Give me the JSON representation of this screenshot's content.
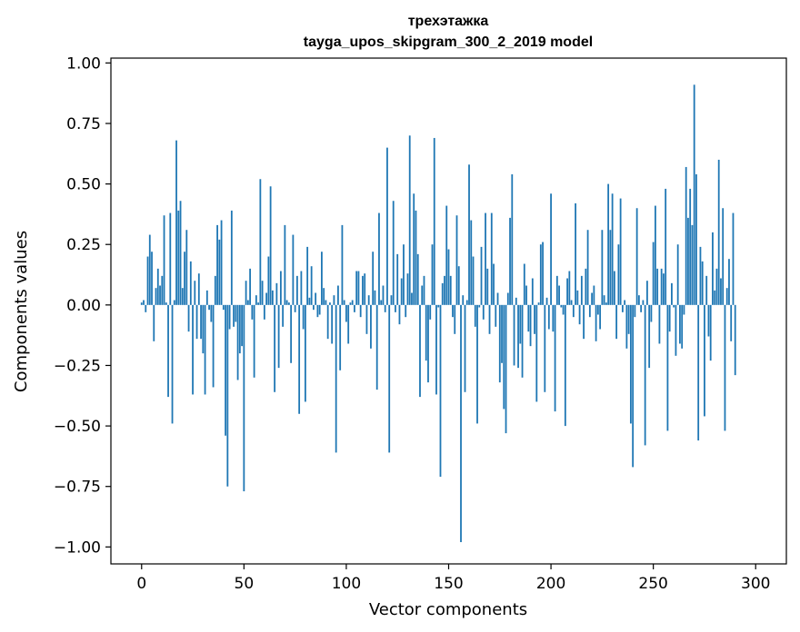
{
  "chart_data": {
    "type": "bar",
    "title": "трехэтажка",
    "subtitle": "tayga_upos_skipgram_300_2_2019 model",
    "xlabel": "Vector components",
    "ylabel": "Components values",
    "xlim": [
      -15,
      315
    ],
    "ylim": [
      -1.07,
      1.02
    ],
    "xticks": [
      0,
      50,
      100,
      150,
      200,
      250,
      300
    ],
    "yticks": [
      1.0,
      0.75,
      0.5,
      0.25,
      0.0,
      -0.25,
      -0.5,
      -0.75,
      -1.0
    ],
    "ytick_labels": [
      "1.00",
      "0.75",
      "0.50",
      "0.25",
      "0.00",
      "−0.25",
      "−0.50",
      "−0.75",
      "−1.00"
    ],
    "grid": false,
    "bar_color": "#1f77b4",
    "values": [
      0.01,
      0.02,
      -0.03,
      0.2,
      0.29,
      0.22,
      -0.15,
      0.07,
      0.15,
      0.08,
      0.12,
      0.37,
      0.01,
      -0.38,
      0.38,
      -0.49,
      0.02,
      0.68,
      0.39,
      0.43,
      0.07,
      0.22,
      0.31,
      -0.11,
      0.18,
      -0.37,
      0.1,
      -0.14,
      0.13,
      -0.14,
      -0.2,
      -0.37,
      0.06,
      -0.02,
      -0.07,
      -0.34,
      0.12,
      0.33,
      0.27,
      0.35,
      -0.02,
      -0.54,
      -0.75,
      -0.1,
      0.39,
      -0.09,
      -0.07,
      -0.31,
      -0.2,
      -0.17,
      -0.77,
      0.1,
      0.02,
      0.15,
      -0.06,
      -0.3,
      0.04,
      0.01,
      0.52,
      0.1,
      -0.06,
      0.05,
      0.2,
      0.49,
      0.06,
      -0.36,
      0.09,
      -0.26,
      0.14,
      -0.09,
      0.33,
      0.02,
      0.01,
      -0.24,
      0.29,
      -0.03,
      0.12,
      -0.45,
      0.14,
      -0.1,
      -0.4,
      0.24,
      0.03,
      0.16,
      -0.02,
      0.05,
      -0.05,
      -0.04,
      0.22,
      0.07,
      0.02,
      -0.14,
      0.01,
      -0.16,
      0.04,
      -0.61,
      0.08,
      -0.27,
      0.33,
      0.02,
      -0.07,
      -0.16,
      0.01,
      0.02,
      -0.03,
      0.14,
      0.14,
      -0.05,
      0.12,
      0.13,
      -0.12,
      0.04,
      -0.18,
      0.22,
      0.06,
      -0.35,
      0.38,
      0.02,
      0.08,
      -0.03,
      0.65,
      -0.61,
      0.04,
      0.43,
      -0.03,
      0.21,
      -0.08,
      0.11,
      0.25,
      -0.05,
      0.13,
      0.7,
      0.05,
      0.46,
      0.39,
      0.21,
      -0.38,
      0.08,
      0.12,
      -0.23,
      -0.32,
      -0.06,
      0.25,
      0.69,
      -0.37,
      -0.01,
      -0.71,
      0.09,
      0.12,
      0.41,
      0.23,
      0.12,
      -0.05,
      -0.12,
      0.37,
      0.16,
      -0.98,
      0.04,
      -0.36,
      0.02,
      0.58,
      0.35,
      0.2,
      -0.09,
      -0.49,
      -0.01,
      0.24,
      -0.06,
      0.38,
      0.15,
      -0.12,
      0.38,
      0.17,
      -0.09,
      0.05,
      -0.32,
      -0.24,
      -0.43,
      -0.53,
      0.05,
      0.36,
      0.54,
      -0.25,
      0.03,
      -0.26,
      -0.16,
      -0.3,
      0.17,
      0.08,
      -0.11,
      -0.17,
      0.11,
      -0.12,
      -0.4,
      0.01,
      0.25,
      0.26,
      -0.36,
      0.03,
      -0.1,
      0.46,
      -0.11,
      -0.44,
      0.12,
      0.08,
      -0.01,
      -0.04,
      -0.5,
      0.11,
      0.14,
      0.02,
      -0.05,
      0.42,
      0.06,
      -0.08,
      0.12,
      -0.14,
      0.15,
      0.31,
      -0.05,
      0.05,
      0.08,
      -0.15,
      -0.04,
      -0.1,
      0.31,
      0.04,
      0.01,
      0.5,
      0.31,
      0.46,
      0.14,
      -0.14,
      0.25,
      0.44,
      -0.03,
      0.02,
      -0.18,
      -0.12,
      -0.49,
      -0.67,
      -0.05,
      0.4,
      0.04,
      -0.03,
      0.02,
      -0.58,
      0.1,
      -0.26,
      -0.07,
      0.26,
      0.41,
      0.15,
      -0.16,
      0.15,
      0.13,
      0.48,
      -0.52,
      -0.11,
      0.09,
      -0.01,
      -0.21,
      0.25,
      -0.16,
      -0.18,
      -0.04,
      0.57,
      0.36,
      0.48,
      0.33,
      0.91,
      0.54,
      -0.56,
      0.24,
      0.18,
      -0.46,
      0.12,
      -0.13,
      -0.23,
      0.3,
      0.06,
      0.15,
      0.6,
      0.11,
      0.4,
      -0.52,
      0.07,
      0.19,
      -0.15,
      0.38,
      -0.29
    ]
  }
}
